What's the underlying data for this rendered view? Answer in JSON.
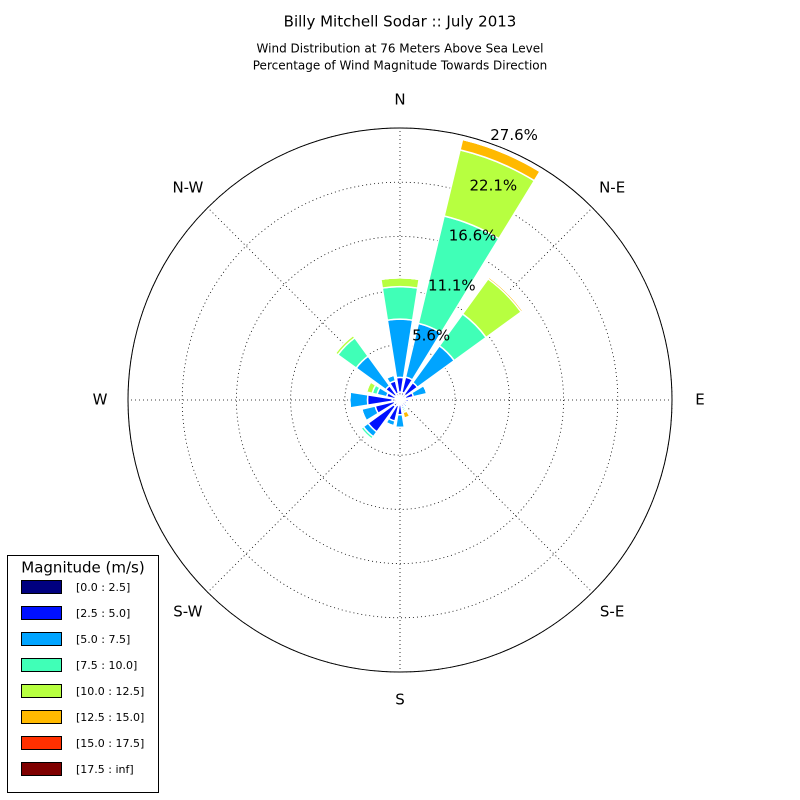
{
  "chart_data": {
    "type": "windrose",
    "title": "Billy Mitchell Sodar :: July 2013",
    "subtitle": [
      "Wind Distribution at 76 Meters Above Sea Level",
      "Percentage of Wind Magnitude Towards Direction"
    ],
    "categories": [
      "N",
      null,
      "N-E",
      null,
      "E",
      null,
      "S-E",
      null,
      "S",
      null,
      "S-W",
      null,
      "W",
      null,
      "N-W",
      null
    ],
    "ylim": [
      0,
      27.6
    ],
    "yticks": [
      {
        "value": 5.6,
        "label": "5.6%"
      },
      {
        "value": 11.1,
        "label": "11.1%"
      },
      {
        "value": 16.6,
        "label": "16.6%"
      },
      {
        "value": 22.1,
        "label": "22.1%"
      },
      {
        "value": 27.6,
        "label": "27.6%"
      }
    ],
    "grid": true,
    "legend_title": "Magnitude (m/s)",
    "legend_position": "lower left",
    "series": [
      {
        "name": "[0.0 : 2.5]",
        "color": "#00007f",
        "values": [
          0.8,
          0.8,
          0.7,
          0.6,
          0.5,
          0.4,
          0.4,
          0.4,
          0.5,
          0.6,
          0.8,
          0.6,
          0.8,
          0.5,
          0.6,
          0.7
        ]
      },
      {
        "name": "[2.5 : 5.0]",
        "color": "#0010ff",
        "values": [
          1.5,
          1.6,
          1.5,
          0.8,
          0.4,
          0.3,
          0.3,
          0.3,
          1.0,
          1.6,
          3.2,
          2.0,
          2.5,
          0.9,
          1.2,
          1.3
        ]
      },
      {
        "name": "[5.0 : 7.5]",
        "color": "#00a4ff",
        "values": [
          5.9,
          5.6,
          4.6,
          1.4,
          0,
          0,
          0.2,
          0.2,
          1.3,
          0.5,
          0.6,
          1.4,
          1.8,
          1.0,
          3.7,
          0.6
        ]
      },
      {
        "name": "[7.5 : 10.0]",
        "color": "#40ffb7",
        "values": [
          3.3,
          11.2,
          4.0,
          0,
          0,
          0,
          0,
          0.2,
          0,
          0,
          0.3,
          0,
          0,
          0.5,
          2.3,
          0
        ]
      },
      {
        "name": "[10.0 : 12.5]",
        "color": "#b7ff40",
        "values": [
          0.9,
          6.9,
          4.4,
          0,
          0,
          0,
          0,
          0.2,
          0,
          0,
          0,
          0,
          0,
          0.6,
          0.3,
          0
        ]
      },
      {
        "name": "[12.5 : 15.0]",
        "color": "#ffb900",
        "values": [
          0,
          1.1,
          0.2,
          0,
          0,
          0,
          0,
          0.6,
          0,
          0,
          0,
          0,
          0,
          0,
          0,
          0
        ]
      },
      {
        "name": "[15.0 : 17.5]",
        "color": "#ff3000",
        "values": [
          0,
          0,
          0.1,
          0,
          0,
          0,
          0,
          0,
          0,
          0,
          0,
          0,
          0,
          0,
          0,
          0
        ]
      },
      {
        "name": "[17.5 : inf]",
        "color": "#7f0000",
        "values": [
          0,
          0,
          0,
          0,
          0,
          0,
          0,
          0,
          0,
          0,
          0,
          0,
          0,
          0,
          0,
          0
        ]
      }
    ]
  }
}
